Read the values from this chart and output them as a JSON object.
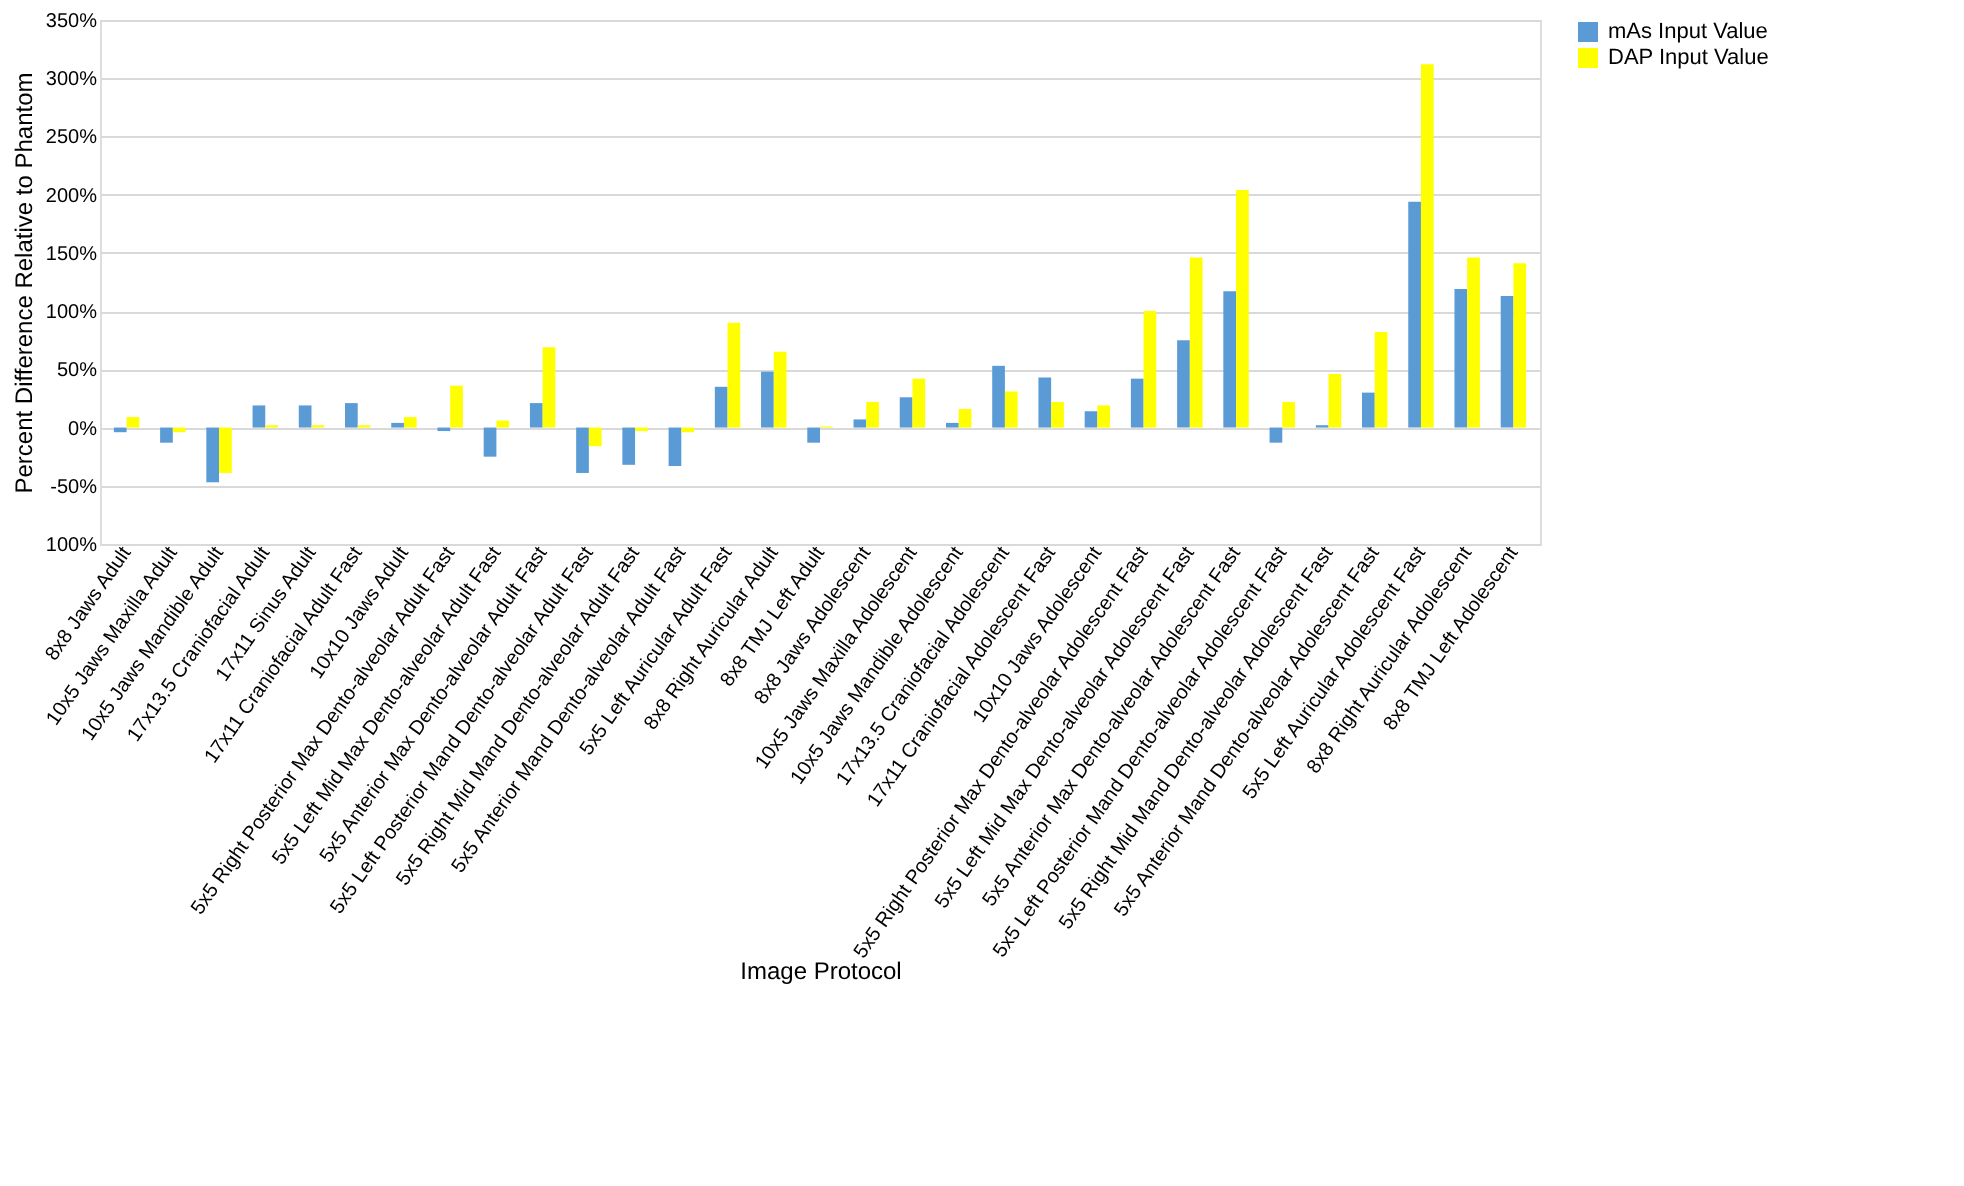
{
  "chart_data": {
    "type": "bar",
    "xlabel": "Image Protocol",
    "ylabel": "Percent Difference Relative to Phantom",
    "categories": [
      "8x8 Jaws Adult",
      "10x5 Jaws Maxilla Adult",
      "10x5 Jaws Mandible Adult",
      "17x13.5 Craniofacial Adult",
      "17x11 Sinus Adult",
      "17x11 Craniofacial Adult Fast",
      "10x10 Jaws Adult",
      "5x5 Right Posterior Max Dento-alveolar Adult Fast",
      "5x5 Left Mid Max Dento-alveolar Adult Fast",
      "5x5 Anterior Max Dento-alveolar Adult Fast",
      "5x5 Left Posterior Mand Dento-alveolar Adult Fast",
      "5x5 Right Mid Mand Dento-alveolar Adult Fast",
      "5x5 Anterior Mand Dento-alveolar Adult Fast",
      "5x5 Left Auricular Adult Fast",
      "8x8 Right Auricular Adult",
      "8x8 TMJ Left Adult",
      "8x8 Jaws Adolescent",
      "10x5 Jaws Maxilla Adolescent",
      "10x5 Jaws Mandible Adolescent",
      "17x13.5 Craniofacial Adolescent",
      "17x11 Craniofacial Adolescent Fast",
      "10x10 Jaws Adolescent",
      "5x5 Right Posterior Max Dento-alveolar Adolescent Fast",
      "5x5 Left Mid Max Dento-alveolar Adolescent Fast",
      "5x5 Anterior Max Dento-alveolar Adolescent Fast",
      "5x5 Left Posterior Mand Dento-alveolar Adolescent Fast",
      "5x5 Right Mid Mand Dento-alveolar Adolescent Fast",
      "5x5 Anterior Mand Dento-alveolar Adolescent Fast",
      "5x5 Left Auricular Adolescent Fast",
      "8x8 Right Auricular Adolescent",
      "8x8 TMJ Left Adolescent"
    ],
    "series": [
      {
        "name": "mAs Input Value",
        "color": "#5b9bd5",
        "values": [
          -4,
          -13,
          -47,
          19,
          19,
          21,
          4,
          -3,
          -25,
          21,
          -39,
          -32,
          -33,
          35,
          48,
          -13,
          7,
          26,
          4,
          53,
          43,
          14,
          42,
          75,
          117,
          -13,
          2,
          30,
          194,
          119,
          113
        ]
      },
      {
        "name": "DAP Input Value",
        "color": "#ffff00",
        "values": [
          9,
          -4,
          -39,
          2,
          2,
          2,
          9,
          36,
          6,
          69,
          -16,
          -3,
          -4,
          90,
          65,
          1,
          22,
          42,
          16,
          31,
          22,
          19,
          100,
          146,
          204,
          22,
          46,
          82,
          312,
          146,
          141
        ]
      }
    ],
    "ylim": [
      -100,
      350
    ],
    "yticks": [
      {
        "value": -100,
        "label": "100%"
      },
      {
        "value": -50,
        "label": "-50%"
      },
      {
        "value": 0,
        "label": "0%"
      },
      {
        "value": 50,
        "label": "50%"
      },
      {
        "value": 100,
        "label": "100%"
      },
      {
        "value": 150,
        "label": "150%"
      },
      {
        "value": 200,
        "label": "200%"
      },
      {
        "value": 250,
        "label": "250%"
      },
      {
        "value": 300,
        "label": "300%"
      },
      {
        "value": 350,
        "label": "350%"
      }
    ],
    "grid": "y",
    "legend": "right"
  }
}
